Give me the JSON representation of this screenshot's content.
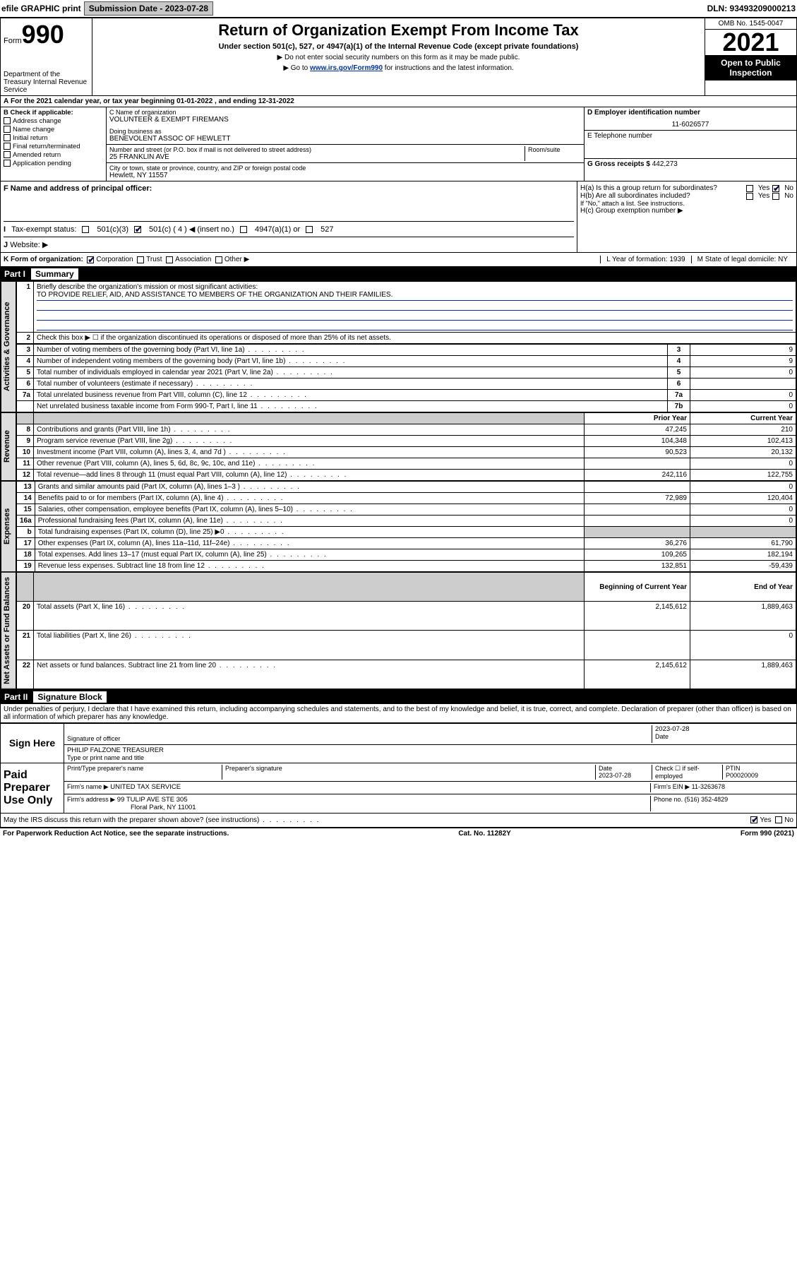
{
  "topbar": {
    "efile": "efile GRAPHIC print",
    "submission_label": "Submission Date - 2023-07-28",
    "dln": "DLN: 93493209000213"
  },
  "header": {
    "form_label": "Form",
    "form_number": "990",
    "dept": "Department of the Treasury Internal Revenue Service",
    "title": "Return of Organization Exempt From Income Tax",
    "sub": "Under section 501(c), 527, or 4947(a)(1) of the Internal Revenue Code (except private foundations)",
    "sub2a": "▶ Do not enter social security numbers on this form as it may be made public.",
    "sub2b_pre": "▶ Go to ",
    "sub2b_link": "www.irs.gov/Form990",
    "sub2b_post": " for instructions and the latest information.",
    "omb": "OMB No. 1545-0047",
    "year": "2021",
    "inspect": "Open to Public Inspection"
  },
  "line_a": "For the 2021 calendar year, or tax year beginning 01-01-2022 , and ending 12-31-2022",
  "section_b": {
    "label": "B Check if applicable:",
    "items": [
      "Address change",
      "Name change",
      "Initial return",
      "Final return/terminated",
      "Amended return",
      "Application pending"
    ]
  },
  "section_c": {
    "name_label": "C Name of organization",
    "name": "VOLUNTEER & EXEMPT FIREMANS",
    "dba_label": "Doing business as",
    "dba": "BENEVOLENT ASSOC OF HEWLETT",
    "street_label": "Number and street (or P.O. box if mail is not delivered to street address)",
    "room_label": "Room/suite",
    "street": "25 FRANKLIN AVE",
    "city_label": "City or town, state or province, country, and ZIP or foreign postal code",
    "city": "Hewlett, NY  11557"
  },
  "section_d": {
    "label": "D Employer identification number",
    "ein": "11-6026577",
    "e_label": "E Telephone number",
    "g_label": "G Gross receipts $",
    "g_value": "442,273"
  },
  "section_f": {
    "label": "F Name and address of principal officer:"
  },
  "section_h": {
    "ha": "H(a)  Is this a group return for subordinates?",
    "hb": "H(b)  Are all subordinates included?",
    "hb_note": "If \"No,\" attach a list. See instructions.",
    "hc": "H(c)  Group exemption number ▶",
    "yes": "Yes",
    "no": "No"
  },
  "tax_exempt": {
    "label_i": "I",
    "label": "Tax-exempt status:",
    "c3": "501(c)(3)",
    "c": "501(c) ( 4 ) ◀ (insert no.)",
    "a1": "4947(a)(1) or",
    "s527": "527"
  },
  "line_j": {
    "label": "J",
    "text": "Website: ▶"
  },
  "line_k": {
    "label": "K Form of organization:",
    "corp": "Corporation",
    "trust": "Trust",
    "assoc": "Association",
    "other": "Other ▶",
    "l": "L Year of formation: 1939",
    "m": "M State of legal domicile: NY"
  },
  "part1": {
    "num": "Part I",
    "title": "Summary",
    "line1_label": "1",
    "line1": "Briefly describe the organization's mission or most significant activities:",
    "mission": "TO PROVIDE RELIEF, AID, AND ASSISTANCE TO MEMBERS OF THE ORGANIZATION AND THEIR FAMILIES.",
    "line2": "Check this box ▶ ☐  if the organization discontinued its operations or disposed of more than 25% of its net assets.",
    "governance_rows": [
      {
        "n": "3",
        "desc": "Number of voting members of the governing body (Part VI, line 1a)",
        "box": "3",
        "val": "9"
      },
      {
        "n": "4",
        "desc": "Number of independent voting members of the governing body (Part VI, line 1b)",
        "box": "4",
        "val": "9"
      },
      {
        "n": "5",
        "desc": "Total number of individuals employed in calendar year 2021 (Part V, line 2a)",
        "box": "5",
        "val": "0"
      },
      {
        "n": "6",
        "desc": "Total number of volunteers (estimate if necessary)",
        "box": "6",
        "val": ""
      },
      {
        "n": "7a",
        "desc": "Total unrelated business revenue from Part VIII, column (C), line 12",
        "box": "7a",
        "val": "0"
      },
      {
        "n": "",
        "desc": "Net unrelated business taxable income from Form 990-T, Part I, line 11",
        "box": "7b",
        "val": "0"
      }
    ],
    "col_prior": "Prior Year",
    "col_curr": "Current Year",
    "revenue_rows": [
      {
        "n": "8",
        "desc": "Contributions and grants (Part VIII, line 1h)",
        "prior": "47,245",
        "curr": "210"
      },
      {
        "n": "9",
        "desc": "Program service revenue (Part VIII, line 2g)",
        "prior": "104,348",
        "curr": "102,413"
      },
      {
        "n": "10",
        "desc": "Investment income (Part VIII, column (A), lines 3, 4, and 7d )",
        "prior": "90,523",
        "curr": "20,132"
      },
      {
        "n": "11",
        "desc": "Other revenue (Part VIII, column (A), lines 5, 6d, 8c, 9c, 10c, and 11e)",
        "prior": "",
        "curr": "0"
      },
      {
        "n": "12",
        "desc": "Total revenue—add lines 8 through 11 (must equal Part VIII, column (A), line 12)",
        "prior": "242,116",
        "curr": "122,755"
      }
    ],
    "expense_rows": [
      {
        "n": "13",
        "desc": "Grants and similar amounts paid (Part IX, column (A), lines 1–3 )",
        "prior": "",
        "curr": "0"
      },
      {
        "n": "14",
        "desc": "Benefits paid to or for members (Part IX, column (A), line 4)",
        "prior": "72,989",
        "curr": "120,404"
      },
      {
        "n": "15",
        "desc": "Salaries, other compensation, employee benefits (Part IX, column (A), lines 5–10)",
        "prior": "",
        "curr": "0"
      },
      {
        "n": "16a",
        "desc": "Professional fundraising fees (Part IX, column (A), line 11e)",
        "prior": "",
        "curr": "0"
      },
      {
        "n": "b",
        "desc": "Total fundraising expenses (Part IX, column (D), line 25) ▶0",
        "prior": "shade",
        "curr": "shade"
      },
      {
        "n": "17",
        "desc": "Other expenses (Part IX, column (A), lines 11a–11d, 11f–24e)",
        "prior": "36,276",
        "curr": "61,790"
      },
      {
        "n": "18",
        "desc": "Total expenses. Add lines 13–17 (must equal Part IX, column (A), line 25)",
        "prior": "109,265",
        "curr": "182,194"
      },
      {
        "n": "19",
        "desc": "Revenue less expenses. Subtract line 18 from line 12",
        "prior": "132,851",
        "curr": "-59,439"
      }
    ],
    "col_boy": "Beginning of Current Year",
    "col_eoy": "End of Year",
    "net_rows": [
      {
        "n": "20",
        "desc": "Total assets (Part X, line 16)",
        "prior": "2,145,612",
        "curr": "1,889,463"
      },
      {
        "n": "21",
        "desc": "Total liabilities (Part X, line 26)",
        "prior": "",
        "curr": "0"
      },
      {
        "n": "22",
        "desc": "Net assets or fund balances. Subtract line 21 from line 20",
        "prior": "2,145,612",
        "curr": "1,889,463"
      }
    ],
    "vtab_gov": "Activities & Governance",
    "vtab_rev": "Revenue",
    "vtab_exp": "Expenses",
    "vtab_net": "Net Assets or Fund Balances"
  },
  "part2": {
    "num": "Part II",
    "title": "Signature Block",
    "penalties": "Under penalties of perjury, I declare that I have examined this return, including accompanying schedules and statements, and to the best of my knowledge and belief, it is true, correct, and complete. Declaration of preparer (other than officer) is based on all information of which preparer has any knowledge.",
    "sign_here": "Sign Here",
    "sig_officer": "Signature of officer",
    "sig_date": "2023-07-28",
    "date_label": "Date",
    "officer_name": "PHILIP FALZONE  TREASURER",
    "type_name": "Type or print name and title",
    "paid_prep": "Paid Preparer Use Only",
    "prep_name_label": "Print/Type preparer's name",
    "prep_sig_label": "Preparer's signature",
    "prep_date_label": "Date",
    "prep_date": "2023-07-28",
    "check_if": "Check ☐ if self-employed",
    "ptin_label": "PTIN",
    "ptin": "P00020009",
    "firm_name_label": "Firm's name    ▶",
    "firm_name": "UNITED TAX SERVICE",
    "firm_ein_label": "Firm's EIN ▶",
    "firm_ein": "11-3263678",
    "firm_addr_label": "Firm's address ▶",
    "firm_addr1": "99 TULIP AVE STE 305",
    "firm_addr2": "Floral Park, NY  11001",
    "phone_label": "Phone no.",
    "phone": "(516) 352-4829",
    "may_irs": "May the IRS discuss this return with the preparer shown above? (see instructions)",
    "yes": "Yes",
    "no": "No"
  },
  "footer": {
    "left": "For Paperwork Reduction Act Notice, see the separate instructions.",
    "mid": "Cat. No. 11282Y",
    "right": "Form 990 (2021)"
  }
}
